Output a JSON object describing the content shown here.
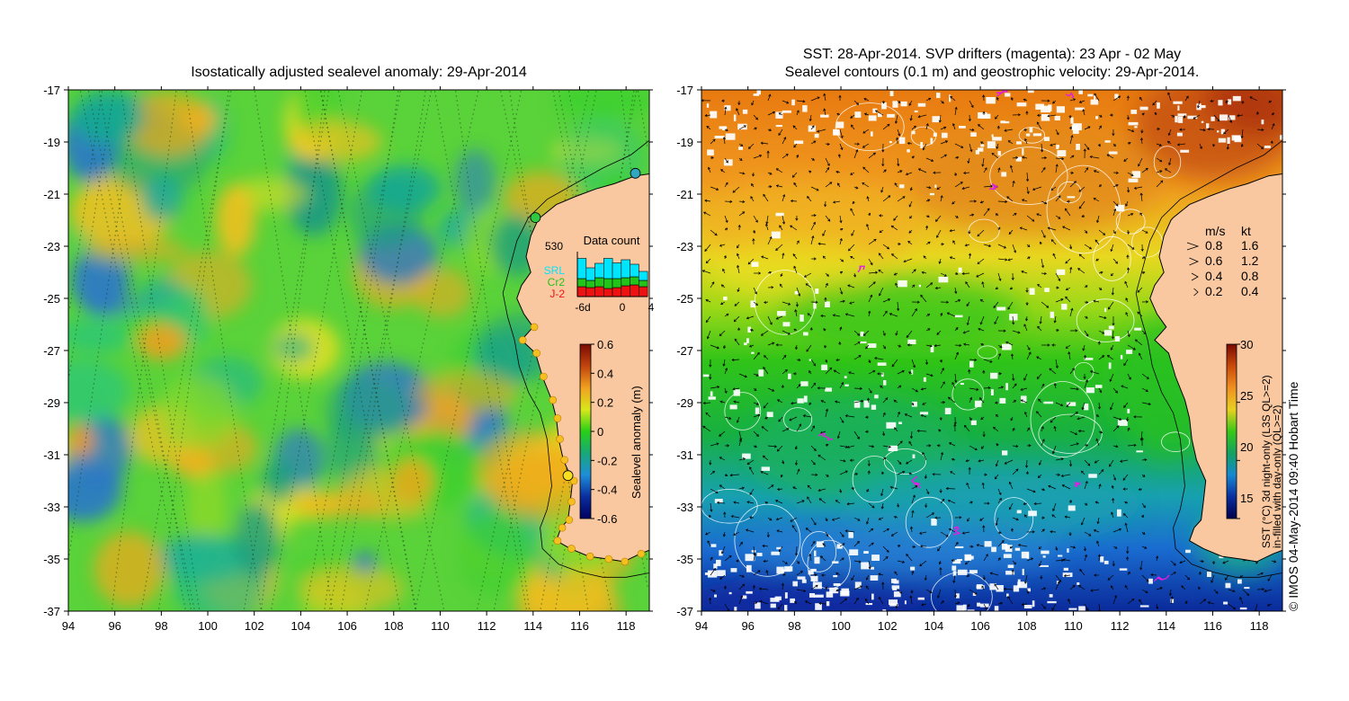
{
  "left_panel": {
    "title": "Isostatically adjusted sealevel anomaly: 29-Apr-2014",
    "colorbar": {
      "label": "Sealevel anomaly (m)",
      "ticks": [
        "0.6",
        "0.4",
        "0.2",
        "0",
        "-0.2",
        "-0.4",
        "-0.6"
      ],
      "colors": [
        "#7a0a03",
        "#c1440e",
        "#f0a020",
        "#d8e81a",
        "#28d018",
        "#18a878",
        "#1e8ed8",
        "#0a2e9e",
        "#000060"
      ]
    },
    "data_count": {
      "title": "Data count",
      "max_label": "530",
      "x_ticks": [
        "-6d",
        "0",
        "4"
      ],
      "legend": [
        {
          "label": "SRL",
          "color": "#00e5ff"
        },
        {
          "label": "Cr2",
          "color": "#22c41a"
        },
        {
          "label": "J-2",
          "color": "#ee1111"
        }
      ],
      "bars": [
        {
          "j2": 0.22,
          "cr2": 0.18,
          "srl": 0.45
        },
        {
          "j2": 0.2,
          "cr2": 0.16,
          "srl": 0.28
        },
        {
          "j2": 0.22,
          "cr2": 0.2,
          "srl": 0.32
        },
        {
          "j2": 0.18,
          "cr2": 0.22,
          "srl": 0.45
        },
        {
          "j2": 0.2,
          "cr2": 0.2,
          "srl": 0.35
        },
        {
          "j2": 0.24,
          "cr2": 0.18,
          "srl": 0.4
        },
        {
          "j2": 0.26,
          "cr2": 0.18,
          "srl": 0.28
        },
        {
          "j2": 0.22,
          "cr2": 0.14,
          "srl": 0.2
        }
      ]
    }
  },
  "right_panel": {
    "title_line1": "SST: 28-Apr-2014. SVP drifters (magenta): 23 Apr - 02 May",
    "title_line2": "Sealevel contours (0.1 m) and geostrophic velocity: 29-Apr-2014.",
    "colorbar": {
      "label_line1": "SST (°C) 3d night-only (L3S QL>=2)",
      "label_line2": "in-filled with day-only (QL>=2)",
      "ticks": [
        "30",
        "25",
        "20",
        "15"
      ],
      "colors": [
        "#7a0a03",
        "#c94a0a",
        "#f09020",
        "#e8d020",
        "#38c818",
        "#14a060",
        "#1688d0",
        "#0a2e9e",
        "#00004a"
      ]
    },
    "velocity_key": {
      "header_ms": "m/s",
      "header_kt": "kt",
      "rows": [
        {
          "ms": "0.8",
          "kt": "1.6"
        },
        {
          "ms": "0.6",
          "kt": "1.2"
        },
        {
          "ms": "0.4",
          "kt": "0.8"
        },
        {
          "ms": "0.2",
          "kt": "0.4"
        }
      ]
    }
  },
  "axes": {
    "x_ticks": [
      "94",
      "96",
      "98",
      "100",
      "102",
      "104",
      "106",
      "108",
      "110",
      "112",
      "114",
      "116",
      "118"
    ],
    "y_ticks": [
      "-17",
      "-19",
      "-21",
      "-23",
      "-25",
      "-27",
      "-29",
      "-31",
      "-33",
      "-35",
      "-37"
    ]
  },
  "credit": "© IMOS 04-May-2014 09:40 Hobart Time"
}
